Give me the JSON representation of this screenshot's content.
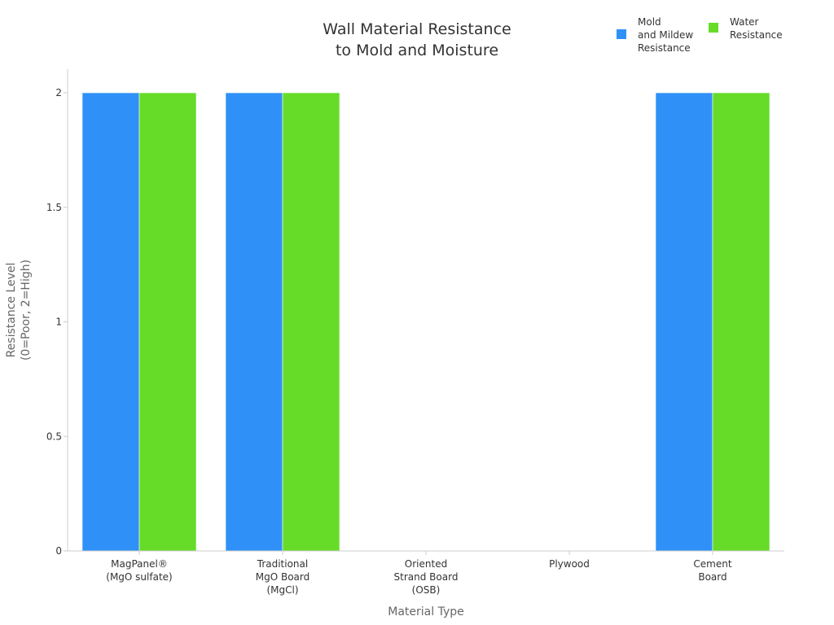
{
  "chart_data": {
    "type": "bar",
    "title": [
      "Wall Material Resistance",
      "to Mold and Moisture"
    ],
    "xlabel": "Material Type",
    "ylabel": [
      "Resistance Level",
      "(0=Poor, 2=High)"
    ],
    "categories": [
      [
        "MagPanel®",
        "(MgO sulfate)"
      ],
      [
        "Traditional",
        "MgO Board",
        "(MgCl)"
      ],
      [
        "Oriented",
        "Strand Board",
        "(OSB)"
      ],
      [
        "Plywood"
      ],
      [
        "Cement",
        "Board"
      ]
    ],
    "series": [
      {
        "name": [
          "Mold",
          "and Mildew",
          "Resistance"
        ],
        "color": "#2f91f7",
        "values": [
          2,
          2,
          0,
          0,
          2
        ]
      },
      {
        "name": [
          "Water",
          "Resistance"
        ],
        "color": "#66dc29",
        "values": [
          2,
          2,
          0,
          0,
          2
        ]
      }
    ],
    "ylim": [
      0,
      2
    ],
    "yticks": [
      "0",
      "0.5",
      "1",
      "1.5",
      "2"
    ],
    "legend_position": "top-right",
    "grid": false
  }
}
